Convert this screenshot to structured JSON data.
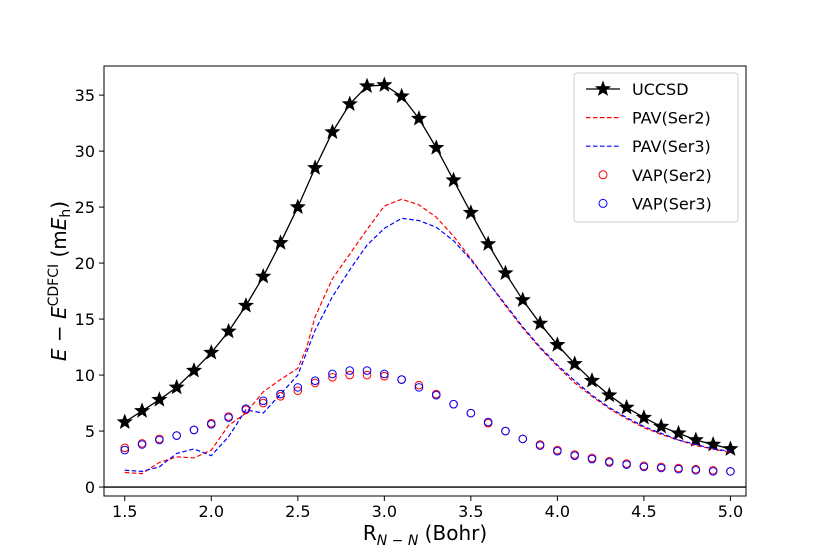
{
  "chart_data": {
    "type": "line",
    "xlabel": "R",
    "xlabel_sub": "N − N",
    "xlabel_unit": " (Bohr)",
    "ylabel": {
      "E1": "E",
      "minus": " − ",
      "E2": "E",
      "sup": "CDFCI",
      "unit_open": " (m",
      "unit_E": "E",
      "unit_sub": "h",
      "unit_close": ")"
    },
    "xlim": [
      1.38,
      5.09
    ],
    "ylim": [
      -0.8,
      37.6
    ],
    "xticks": [
      1.5,
      2.0,
      2.5,
      3.0,
      3.5,
      4.0,
      4.5,
      5.0
    ],
    "xtick_labels": [
      "1.5",
      "2.0",
      "2.5",
      "3.0",
      "3.5",
      "4.0",
      "4.5",
      "5.0"
    ],
    "yticks": [
      0,
      5,
      10,
      15,
      20,
      25,
      30,
      35
    ],
    "ytick_labels": [
      "0",
      "5",
      "10",
      "15",
      "20",
      "25",
      "30",
      "35"
    ],
    "hline": 0,
    "legend_position": "top-right",
    "series": [
      {
        "name": "UCCSD",
        "style": "line-star",
        "color": "#000000",
        "x": [
          1.5,
          1.6,
          1.7,
          1.8,
          1.9,
          2.0,
          2.1,
          2.2,
          2.3,
          2.4,
          2.5,
          2.6,
          2.7,
          2.8,
          2.9,
          3.0,
          3.1,
          3.2,
          3.3,
          3.4,
          3.5,
          3.6,
          3.7,
          3.8,
          3.9,
          4.0,
          4.1,
          4.2,
          4.3,
          4.4,
          4.5,
          4.6,
          4.7,
          4.8,
          4.9,
          5.0
        ],
        "values": [
          5.8,
          6.8,
          7.8,
          8.9,
          10.4,
          12.0,
          13.9,
          16.2,
          18.8,
          21.8,
          25.0,
          28.5,
          31.7,
          34.2,
          35.8,
          35.9,
          34.9,
          32.9,
          30.3,
          27.4,
          24.5,
          21.7,
          19.1,
          16.7,
          14.6,
          12.7,
          11.0,
          9.5,
          8.2,
          7.1,
          6.2,
          5.4,
          4.8,
          4.2,
          3.8,
          3.4
        ]
      },
      {
        "name": "PAV(Ser2)",
        "style": "dashed",
        "color": "#ff0000",
        "x": [
          1.5,
          1.6,
          1.7,
          1.8,
          1.9,
          2.0,
          2.1,
          2.2,
          2.3,
          2.4,
          2.5,
          2.55,
          2.6,
          2.7,
          2.8,
          2.9,
          3.0,
          3.1,
          3.2,
          3.3,
          3.4,
          3.5,
          3.6,
          3.7,
          3.8,
          3.9,
          4.0,
          4.1,
          4.2,
          4.3,
          4.4,
          4.5,
          4.6,
          4.7,
          4.8,
          4.9,
          5.0
        ],
        "values": [
          1.3,
          1.2,
          2.2,
          2.7,
          2.6,
          3.3,
          5.5,
          6.6,
          8.5,
          9.6,
          10.6,
          12.4,
          15.2,
          18.6,
          20.8,
          23.0,
          25.1,
          25.7,
          25.2,
          24.1,
          22.4,
          20.4,
          18.3,
          16.2,
          14.2,
          12.4,
          10.8,
          9.3,
          8.1,
          7.0,
          6.1,
          5.3,
          4.7,
          4.2,
          3.7,
          3.4,
          3.1
        ]
      },
      {
        "name": "PAV(Ser3)",
        "style": "dashed",
        "color": "#0000ff",
        "x": [
          1.5,
          1.6,
          1.7,
          1.8,
          1.9,
          2.0,
          2.1,
          2.2,
          2.3,
          2.4,
          2.5,
          2.6,
          2.7,
          2.8,
          2.9,
          3.0,
          3.1,
          3.2,
          3.3,
          3.4,
          3.5,
          3.6,
          3.7,
          3.8,
          3.9,
          4.0,
          4.1,
          4.2,
          4.3,
          4.4,
          4.5,
          4.6,
          4.7,
          4.8,
          4.9,
          5.0
        ],
        "values": [
          1.5,
          1.4,
          1.8,
          3.0,
          3.4,
          2.8,
          4.5,
          6.9,
          6.6,
          8.3,
          10.0,
          14.0,
          17.0,
          19.4,
          21.6,
          23.1,
          24.0,
          23.8,
          23.2,
          22.0,
          20.3,
          18.3,
          16.3,
          14.3,
          12.5,
          10.9,
          9.5,
          8.2,
          7.1,
          6.2,
          5.4,
          4.8,
          4.2,
          3.8,
          3.4,
          3.2
        ]
      },
      {
        "name": "VAP(Ser2)",
        "style": "open-circle",
        "color": "#ff0000",
        "x": [
          1.5,
          1.6,
          1.7,
          1.8,
          1.9,
          2.0,
          2.1,
          2.2,
          2.3,
          2.4,
          2.5,
          2.6,
          2.7,
          2.8,
          2.9,
          3.0,
          3.1,
          3.2,
          3.3,
          3.4,
          3.5,
          3.6,
          3.7,
          3.8,
          3.9,
          4.0,
          4.1,
          4.2,
          4.3,
          4.4,
          4.5,
          4.6,
          4.7,
          4.8,
          4.9,
          5.0
        ],
        "values": [
          3.5,
          3.9,
          4.3,
          4.6,
          5.1,
          5.7,
          6.3,
          6.9,
          7.5,
          8.1,
          8.6,
          9.3,
          9.8,
          10.0,
          10.0,
          9.9,
          9.6,
          9.1,
          8.3,
          7.4,
          6.6,
          5.7,
          5.0,
          4.3,
          3.8,
          3.3,
          2.9,
          2.6,
          2.3,
          2.1,
          1.9,
          1.8,
          1.7,
          1.6,
          1.5,
          1.4
        ]
      },
      {
        "name": "VAP(Ser3)",
        "style": "open-circle",
        "color": "#0000ff",
        "x": [
          1.5,
          1.6,
          1.7,
          1.8,
          1.9,
          2.0,
          2.1,
          2.2,
          2.3,
          2.4,
          2.5,
          2.6,
          2.7,
          2.8,
          2.9,
          3.0,
          3.1,
          3.2,
          3.3,
          3.4,
          3.5,
          3.6,
          3.7,
          3.8,
          3.9,
          4.0,
          4.1,
          4.2,
          4.3,
          4.4,
          4.5,
          4.6,
          4.7,
          4.8,
          4.9,
          5.0
        ],
        "values": [
          3.3,
          3.8,
          4.2,
          4.6,
          5.1,
          5.6,
          6.2,
          7.0,
          7.7,
          8.3,
          8.9,
          9.5,
          10.1,
          10.4,
          10.4,
          10.1,
          9.6,
          8.9,
          8.2,
          7.4,
          6.6,
          5.8,
          5.0,
          4.3,
          3.7,
          3.2,
          2.8,
          2.5,
          2.2,
          2.0,
          1.8,
          1.7,
          1.6,
          1.5,
          1.4,
          1.4
        ]
      }
    ]
  }
}
